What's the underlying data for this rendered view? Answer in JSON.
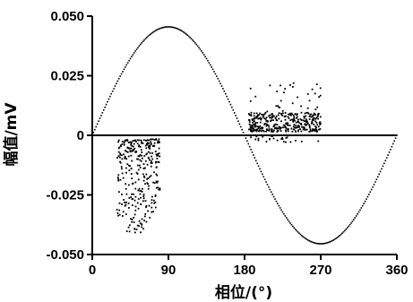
{
  "chart_data": {
    "type": "scatter",
    "title": "",
    "xlabel": "相位/(°)",
    "ylabel": "幅值/mV",
    "xlim": [
      0,
      360
    ],
    "ylim": [
      -0.05,
      0.05
    ],
    "xticks": [
      0,
      90,
      180,
      270,
      360
    ],
    "xtick_labels": [
      "0",
      "90",
      "180",
      "270",
      "360"
    ],
    "yticks": [
      0.05,
      0.025,
      0,
      -0.025,
      -0.05
    ],
    "ytick_labels": [
      "0.050",
      "0.025",
      "0",
      "-0.025",
      "-0.050"
    ],
    "grid": false,
    "legend": "none",
    "colors": {
      "marks": "#000000",
      "background": "#ffffff"
    },
    "reference": {
      "shape": "sine",
      "amplitude": 0.0455,
      "period_deg": 360,
      "peak_x": 90,
      "trough_x": 270
    },
    "zero_line": 0,
    "clusters": [
      {
        "x_range": [
          20,
          80
        ],
        "y_range": [
          -0.043,
          0.0
        ],
        "approx_points": 320
      },
      {
        "x_range": [
          185,
          270
        ],
        "y_range": [
          0.0,
          0.023
        ],
        "approx_points": 400
      }
    ]
  }
}
